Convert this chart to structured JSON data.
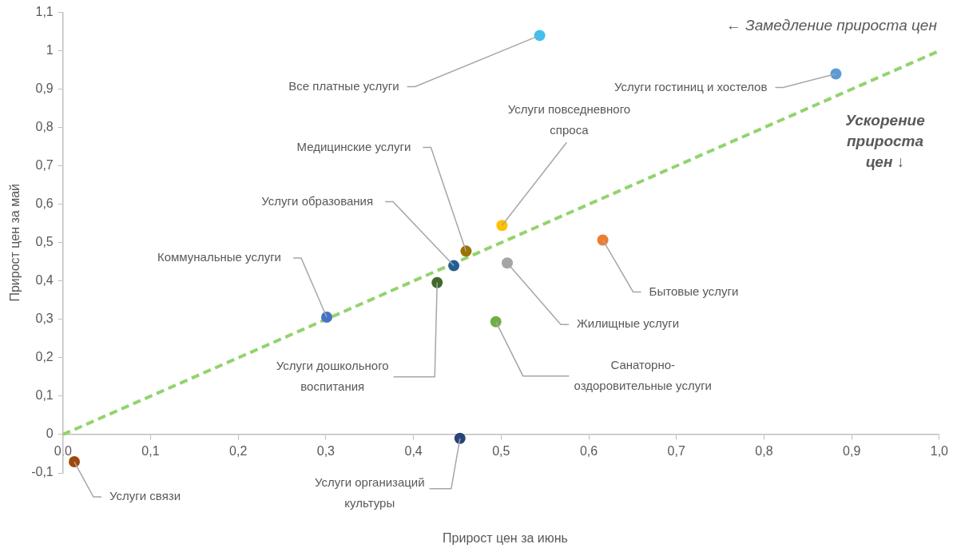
{
  "chart_data": {
    "type": "scatter",
    "xlabel": "Прирост цен за июнь",
    "ylabel": "Прирост цен за май",
    "xlim": [
      0,
      1
    ],
    "ylim": [
      -0.1,
      1.1
    ],
    "xticks": [
      {
        "value": 0,
        "label": "0,0"
      },
      {
        "value": 0.1,
        "label": "0,1"
      },
      {
        "value": 0.2,
        "label": "0,2"
      },
      {
        "value": 0.3,
        "label": "0,3"
      },
      {
        "value": 0.4,
        "label": "0,4"
      },
      {
        "value": 0.5,
        "label": "0,5"
      },
      {
        "value": 0.6,
        "label": "0,6"
      },
      {
        "value": 0.7,
        "label": "0,7"
      },
      {
        "value": 0.8,
        "label": "0,8"
      },
      {
        "value": 0.9,
        "label": "0,9"
      },
      {
        "value": 1,
        "label": "1,0"
      }
    ],
    "yticks": [
      {
        "value": -0.1,
        "label": "-0,1"
      },
      0,
      {
        "value": 0.1,
        "label": "0,1"
      },
      {
        "value": 0.2,
        "label": "0,2"
      },
      {
        "value": 0.3,
        "label": "0,3"
      },
      {
        "value": 0.4,
        "label": "0,4"
      },
      {
        "value": 0.5,
        "label": "0,5"
      },
      {
        "value": 0.6,
        "label": "0,6"
      },
      {
        "value": 0.7,
        "label": "0,7"
      },
      {
        "value": 0.8,
        "label": "0,8"
      },
      {
        "value": 0.9,
        "label": "0,9"
      },
      1,
      {
        "value": 1.1,
        "label": "1,1"
      }
    ],
    "grid": false,
    "legend": false,
    "marker": "circle",
    "annotations": [
      "← Замедление прироста цен",
      "Ускорение прироста цен ↓"
    ],
    "series": [
      {
        "name": "Все платные услуги",
        "color": "#3fc1ef",
        "x": [
          0.544
        ],
        "values": [
          1.04
        ]
      },
      {
        "name": "Услуги гостиниц и хостелов",
        "color": "#5b9bd5",
        "x": [
          0.882
        ],
        "values": [
          0.94
        ]
      },
      {
        "name": "Услуги повседневного спроса",
        "color": "#ffc000",
        "x": [
          0.501
        ],
        "values": [
          0.545
        ]
      },
      {
        "name": "Медицинские услуги",
        "color": "#9c7200",
        "x": [
          0.46
        ],
        "values": [
          0.478
        ]
      },
      {
        "name": "Услуги образования",
        "color": "#255e91",
        "x": [
          0.446
        ],
        "values": [
          0.44
        ]
      },
      {
        "name": "Коммунальные услуги",
        "color": "#4472c4",
        "x": [
          0.301
        ],
        "values": [
          0.306
        ]
      },
      {
        "name": "Услуги дошкольного воспитания",
        "color": "#43682b",
        "x": [
          0.427
        ],
        "values": [
          0.396
        ]
      },
      {
        "name": "Жилищные услуги",
        "color": "#a5a5a5",
        "x": [
          0.507
        ],
        "values": [
          0.447
        ]
      },
      {
        "name": "Бытовые услуги",
        "color": "#ed7d31",
        "x": [
          0.616
        ],
        "values": [
          0.507
        ]
      },
      {
        "name": "Санаторно-оздоровительные услуги",
        "color": "#70ad47",
        "x": [
          0.494
        ],
        "values": [
          0.294
        ]
      },
      {
        "name": "Услуги организаций культуры",
        "color": "#264478",
        "x": [
          0.453
        ],
        "values": [
          -0.01
        ]
      },
      {
        "name": "Услуги связи",
        "color": "#9e480e",
        "x": [
          0.013
        ],
        "values": [
          -0.071
        ]
      },
      {
        "type": "line",
        "color": "#92d36e",
        "line_style": "dashed",
        "marker": "none",
        "x": [
          0,
          1
        ],
        "values": [
          0,
          1
        ]
      }
    ]
  }
}
